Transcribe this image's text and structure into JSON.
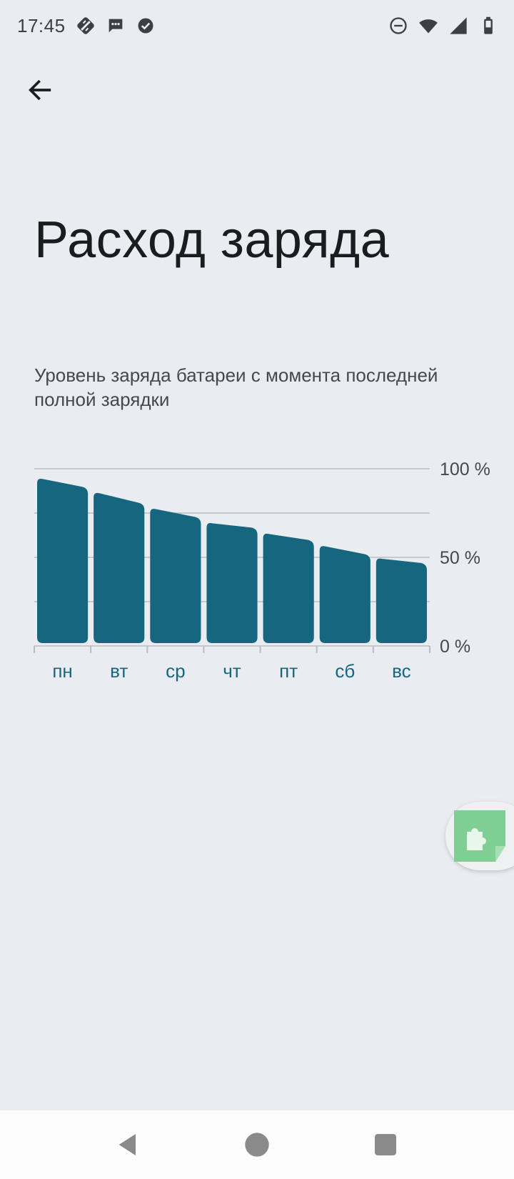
{
  "status_bar": {
    "time": "17:45",
    "left_icons": [
      "sync-off-icon",
      "message-icon",
      "check-circle-icon"
    ],
    "right_icons": [
      "do-not-disturb-icon",
      "wifi-icon",
      "cellular-signal-icon",
      "battery-icon"
    ]
  },
  "header": {
    "back_icon": "arrow-back-icon",
    "title": "Расход заряда"
  },
  "subtitle": "Уровень заряда батареи с момента последней полной зарядки",
  "chart_data": {
    "type": "bar",
    "categories": [
      "пн",
      "вт",
      "ср",
      "чт",
      "пт",
      "сб",
      "вс"
    ],
    "series": [
      {
        "values_start": [
          95,
          87,
          78,
          70,
          64,
          57,
          50
        ],
        "values_end": [
          89,
          80,
          72,
          66,
          59,
          51,
          46
        ]
      }
    ],
    "ylim": [
      0,
      100
    ],
    "yticks": [
      "100 %",
      "50 %",
      "0 %"
    ],
    "grid": true,
    "bar_color": "#17667f",
    "label_color": "#17667f"
  },
  "floating_button": {
    "icon": "puzzle-extension-icon",
    "color": "#7fcf94"
  },
  "nav_bar": {
    "icons": [
      "back-triangle-icon",
      "home-circle-icon",
      "recents-square-icon"
    ],
    "color": "#8a8a8a"
  }
}
